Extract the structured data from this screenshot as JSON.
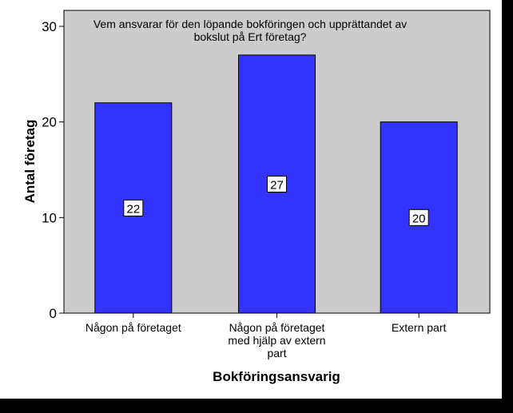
{
  "chart_data": {
    "type": "bar",
    "title_lines": [
      "Vem ansvarar för den löpande bokföringen och upprättandet av",
      "bokslut på Ert företag?"
    ],
    "categories": [
      [
        "Någon på företaget"
      ],
      [
        "Någon på företaget",
        "med hjälp av extern",
        "part"
      ],
      [
        "Extern part"
      ]
    ],
    "values": [
      22,
      27,
      20
    ],
    "data_labels": [
      "22",
      "27",
      "20"
    ],
    "xlabel": "Bokföringsansvarig",
    "ylabel": "Antal företag",
    "ylim": [
      0,
      30
    ],
    "yticks": [
      0,
      10,
      20,
      30
    ],
    "grid": false,
    "colors": {
      "plot_background": "#cccccc",
      "bar_fill": "#3333ff",
      "frame_background": "#ffffff",
      "outer_background": "#000000"
    }
  }
}
